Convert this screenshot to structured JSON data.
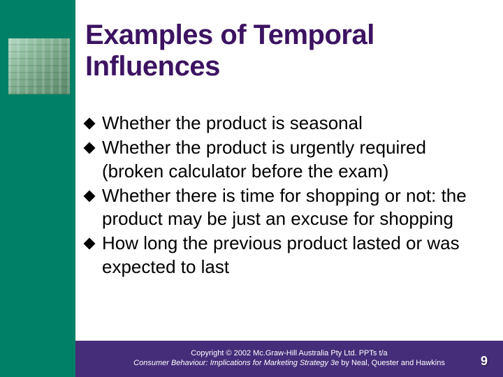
{
  "layout": {
    "slide_width": 720,
    "slide_height": 540,
    "left_bar_color": "#008066",
    "left_bar_width": 108,
    "footer_bar_color": "#462d7a",
    "title_color": "#3c1361",
    "body_text_color": "#000000",
    "footer_text_color": "#ffffff",
    "background_color": "#ffffff",
    "title_fontsize": 40,
    "body_fontsize": 26,
    "footer_fontsize": 11,
    "bullet_marker": "diamond",
    "bullet_marker_color": "#000000"
  },
  "title": "Examples of Temporal Influences",
  "bullets": [
    "Whether the product is seasonal",
    "Whether the product is urgently required (broken calculator before the exam)",
    "Whether there is time for shopping or not: the product may be just an excuse for shopping",
    "How long the previous product lasted or was expected to last"
  ],
  "footer": {
    "line1": "Copyright © 2002 Mc.Graw-Hill Australia Pty Ltd. PPTs t/a",
    "line2_italic": "Consumer Behaviour: Implications for Marketing Strategy 3e",
    "line2_rest": " by Neal, Quester and Hawkins"
  },
  "slide_number": "9"
}
